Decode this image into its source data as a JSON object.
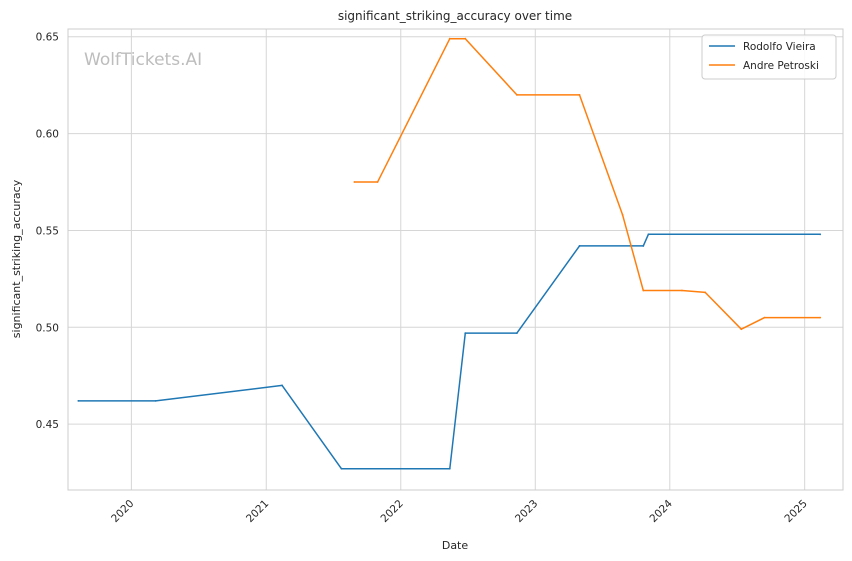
{
  "chart_data": {
    "type": "line",
    "title": "significant_striking_accuracy over time",
    "xlabel": "Date",
    "ylabel": "significant_striking_accuracy",
    "watermark": "WolfTickets.AI",
    "x_ticks": [
      "2020",
      "2021",
      "2022",
      "2023",
      "2024",
      "2025"
    ],
    "y_ticks": [
      "0.45",
      "0.50",
      "0.55",
      "0.60",
      "0.65"
    ],
    "xlim": [
      "2019-07-13",
      "2025-04-15"
    ],
    "ylim": [
      0.416,
      0.654
    ],
    "grid": true,
    "legend_position": "top-right",
    "series": [
      {
        "name": "Rodolfo Vieira",
        "color": "#1f77b4",
        "points": [
          [
            "2019-08-10",
            0.462
          ],
          [
            "2020-03-07",
            0.462
          ],
          [
            "2021-02-13",
            0.47
          ],
          [
            "2021-07-24",
            0.427
          ],
          [
            "2022-05-14",
            0.427
          ],
          [
            "2022-06-25",
            0.497
          ],
          [
            "2022-11-12",
            0.497
          ],
          [
            "2023-05-01",
            0.542
          ],
          [
            "2023-10-21",
            0.542
          ],
          [
            "2023-11-04",
            0.548
          ],
          [
            "2025-02-12",
            0.548
          ]
        ]
      },
      {
        "name": "Andre Petroski",
        "color": "#ff7f0e",
        "points": [
          [
            "2021-08-28",
            0.575
          ],
          [
            "2021-10-30",
            0.575
          ],
          [
            "2022-05-14",
            0.649
          ],
          [
            "2022-06-25",
            0.649
          ],
          [
            "2022-11-12",
            0.62
          ],
          [
            "2023-05-01",
            0.62
          ],
          [
            "2023-08-26",
            0.558
          ],
          [
            "2023-10-21",
            0.519
          ],
          [
            "2024-02-03",
            0.519
          ],
          [
            "2024-04-06",
            0.518
          ],
          [
            "2024-07-13",
            0.499
          ],
          [
            "2024-09-14",
            0.505
          ],
          [
            "2025-02-12",
            0.505
          ]
        ]
      }
    ]
  }
}
